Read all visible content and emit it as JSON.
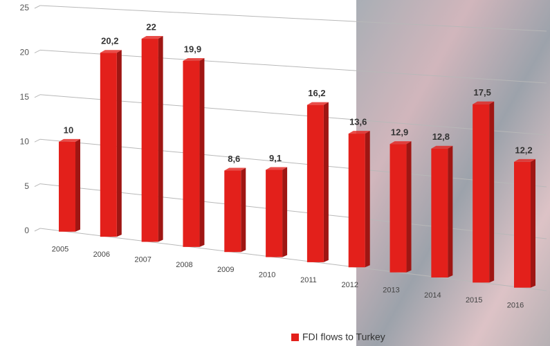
{
  "chart_data": {
    "type": "bar",
    "categories": [
      "2005",
      "2006",
      "2007",
      "2008",
      "2009",
      "2010",
      "2011",
      "2012",
      "2013",
      "2014",
      "2015",
      "2016"
    ],
    "series": [
      {
        "name": "FDI flows to Turkey",
        "color": "#e3201b",
        "values": [
          10,
          20.2,
          22,
          19.9,
          8.6,
          9.1,
          16.2,
          13.6,
          12.9,
          12.8,
          17.5,
          12.2
        ],
        "value_labels": [
          "10",
          "20,2",
          "22",
          "19,9",
          "8,6",
          "9,1",
          "16,2",
          "13,6",
          "12,9",
          "12,8",
          "17,5",
          "12,2"
        ]
      }
    ],
    "ylim": [
      0,
      25
    ],
    "yticks": [
      0,
      5,
      10,
      15,
      20,
      25
    ],
    "grid": true,
    "legend": "bottom"
  }
}
